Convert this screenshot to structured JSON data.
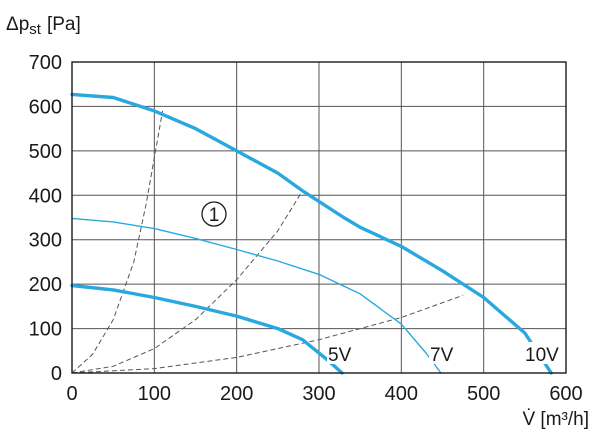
{
  "chart_data": {
    "type": "line",
    "ylabel": "Δp",
    "ylabel_sub": "st",
    "ylabel_unit": "[Pa]",
    "xlabel": "V̇ [m³/h]",
    "xlim": [
      0,
      600
    ],
    "ylim": [
      0,
      700
    ],
    "xticks": [
      "0",
      "100",
      "200",
      "300",
      "400",
      "500",
      "600"
    ],
    "yticks": [
      "0",
      "100",
      "200",
      "300",
      "400",
      "500",
      "600",
      "700"
    ],
    "grid": true,
    "colors": {
      "curve": "#29a8e0",
      "system": "#555555",
      "grid": "#555555",
      "axis": "#1a1a1a"
    },
    "series": [
      {
        "name": "10V",
        "width": "thick",
        "points": [
          [
            0,
            627
          ],
          [
            50,
            620
          ],
          [
            100,
            590
          ],
          [
            150,
            550
          ],
          [
            200,
            500
          ],
          [
            250,
            450
          ],
          [
            280,
            410
          ],
          [
            330,
            350
          ],
          [
            350,
            328
          ],
          [
            400,
            285
          ],
          [
            450,
            230
          ],
          [
            500,
            170
          ],
          [
            550,
            90
          ],
          [
            582,
            0
          ]
        ]
      },
      {
        "name": "7V",
        "width": "thin",
        "points": [
          [
            0,
            348
          ],
          [
            50,
            340
          ],
          [
            100,
            325
          ],
          [
            150,
            303
          ],
          [
            200,
            278
          ],
          [
            250,
            252
          ],
          [
            300,
            222
          ],
          [
            350,
            178
          ],
          [
            400,
            110
          ],
          [
            430,
            45
          ],
          [
            448,
            0
          ]
        ]
      },
      {
        "name": "5V",
        "width": "thick",
        "points": [
          [
            0,
            197
          ],
          [
            50,
            187
          ],
          [
            100,
            170
          ],
          [
            150,
            150
          ],
          [
            200,
            128
          ],
          [
            250,
            100
          ],
          [
            280,
            75
          ],
          [
            310,
            30
          ],
          [
            328,
            0
          ]
        ]
      }
    ],
    "system_curves": [
      {
        "points": [
          [
            0,
            0
          ],
          [
            25,
            42
          ],
          [
            50,
            120
          ],
          [
            75,
            250
          ],
          [
            90,
            380
          ],
          [
            110,
            590
          ]
        ]
      },
      {
        "points": [
          [
            0,
            0
          ],
          [
            50,
            15
          ],
          [
            100,
            55
          ],
          [
            150,
            120
          ],
          [
            200,
            210
          ],
          [
            250,
            320
          ],
          [
            280,
            410
          ]
        ]
      },
      {
        "points": [
          [
            0,
            0
          ],
          [
            100,
            10
          ],
          [
            200,
            35
          ],
          [
            300,
            75
          ],
          [
            400,
            125
          ],
          [
            475,
            175
          ]
        ]
      }
    ],
    "annotations": {
      "marker": "1",
      "curve_labels": [
        "5V",
        "7V",
        "10V"
      ]
    }
  }
}
